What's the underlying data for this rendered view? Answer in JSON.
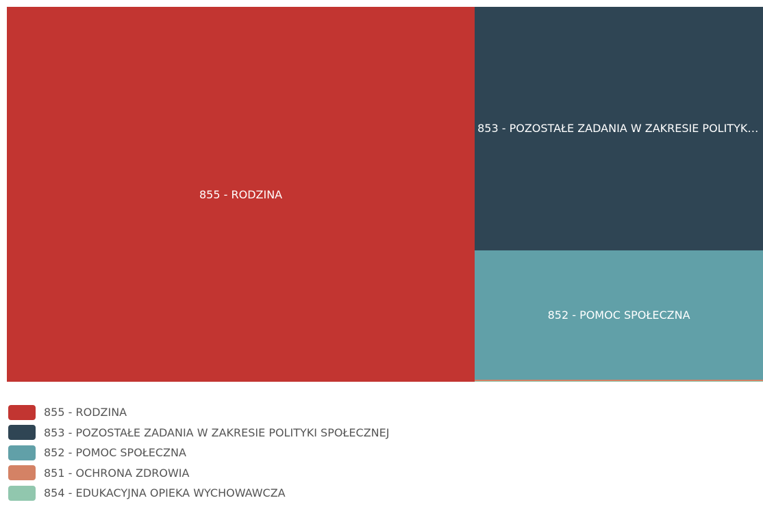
{
  "chart_data": {
    "type": "treemap",
    "series": [
      {
        "name": "855 - RODZINA",
        "color": "#c23531",
        "values": [
          62
        ]
      },
      {
        "name": "853 - POZOSTAŁE ZADANIA W ZAKRESIE POLITYKI SPOŁECZNEJ",
        "color": "#2f4554",
        "values": [
          24.8
        ]
      },
      {
        "name": "852 - POMOC SPOŁECZNA",
        "color": "#61a0a8",
        "values": [
          13.2
        ]
      },
      {
        "name": "851 - OCHRONA ZDROWIA",
        "color": "#d48265",
        "values": [
          0.1
        ]
      },
      {
        "name": "854 - EDUKACYJNA OPIEKA WYCHOWAWCZA",
        "color": "#91c7ae",
        "values": [
          0.1
        ]
      }
    ]
  }
}
